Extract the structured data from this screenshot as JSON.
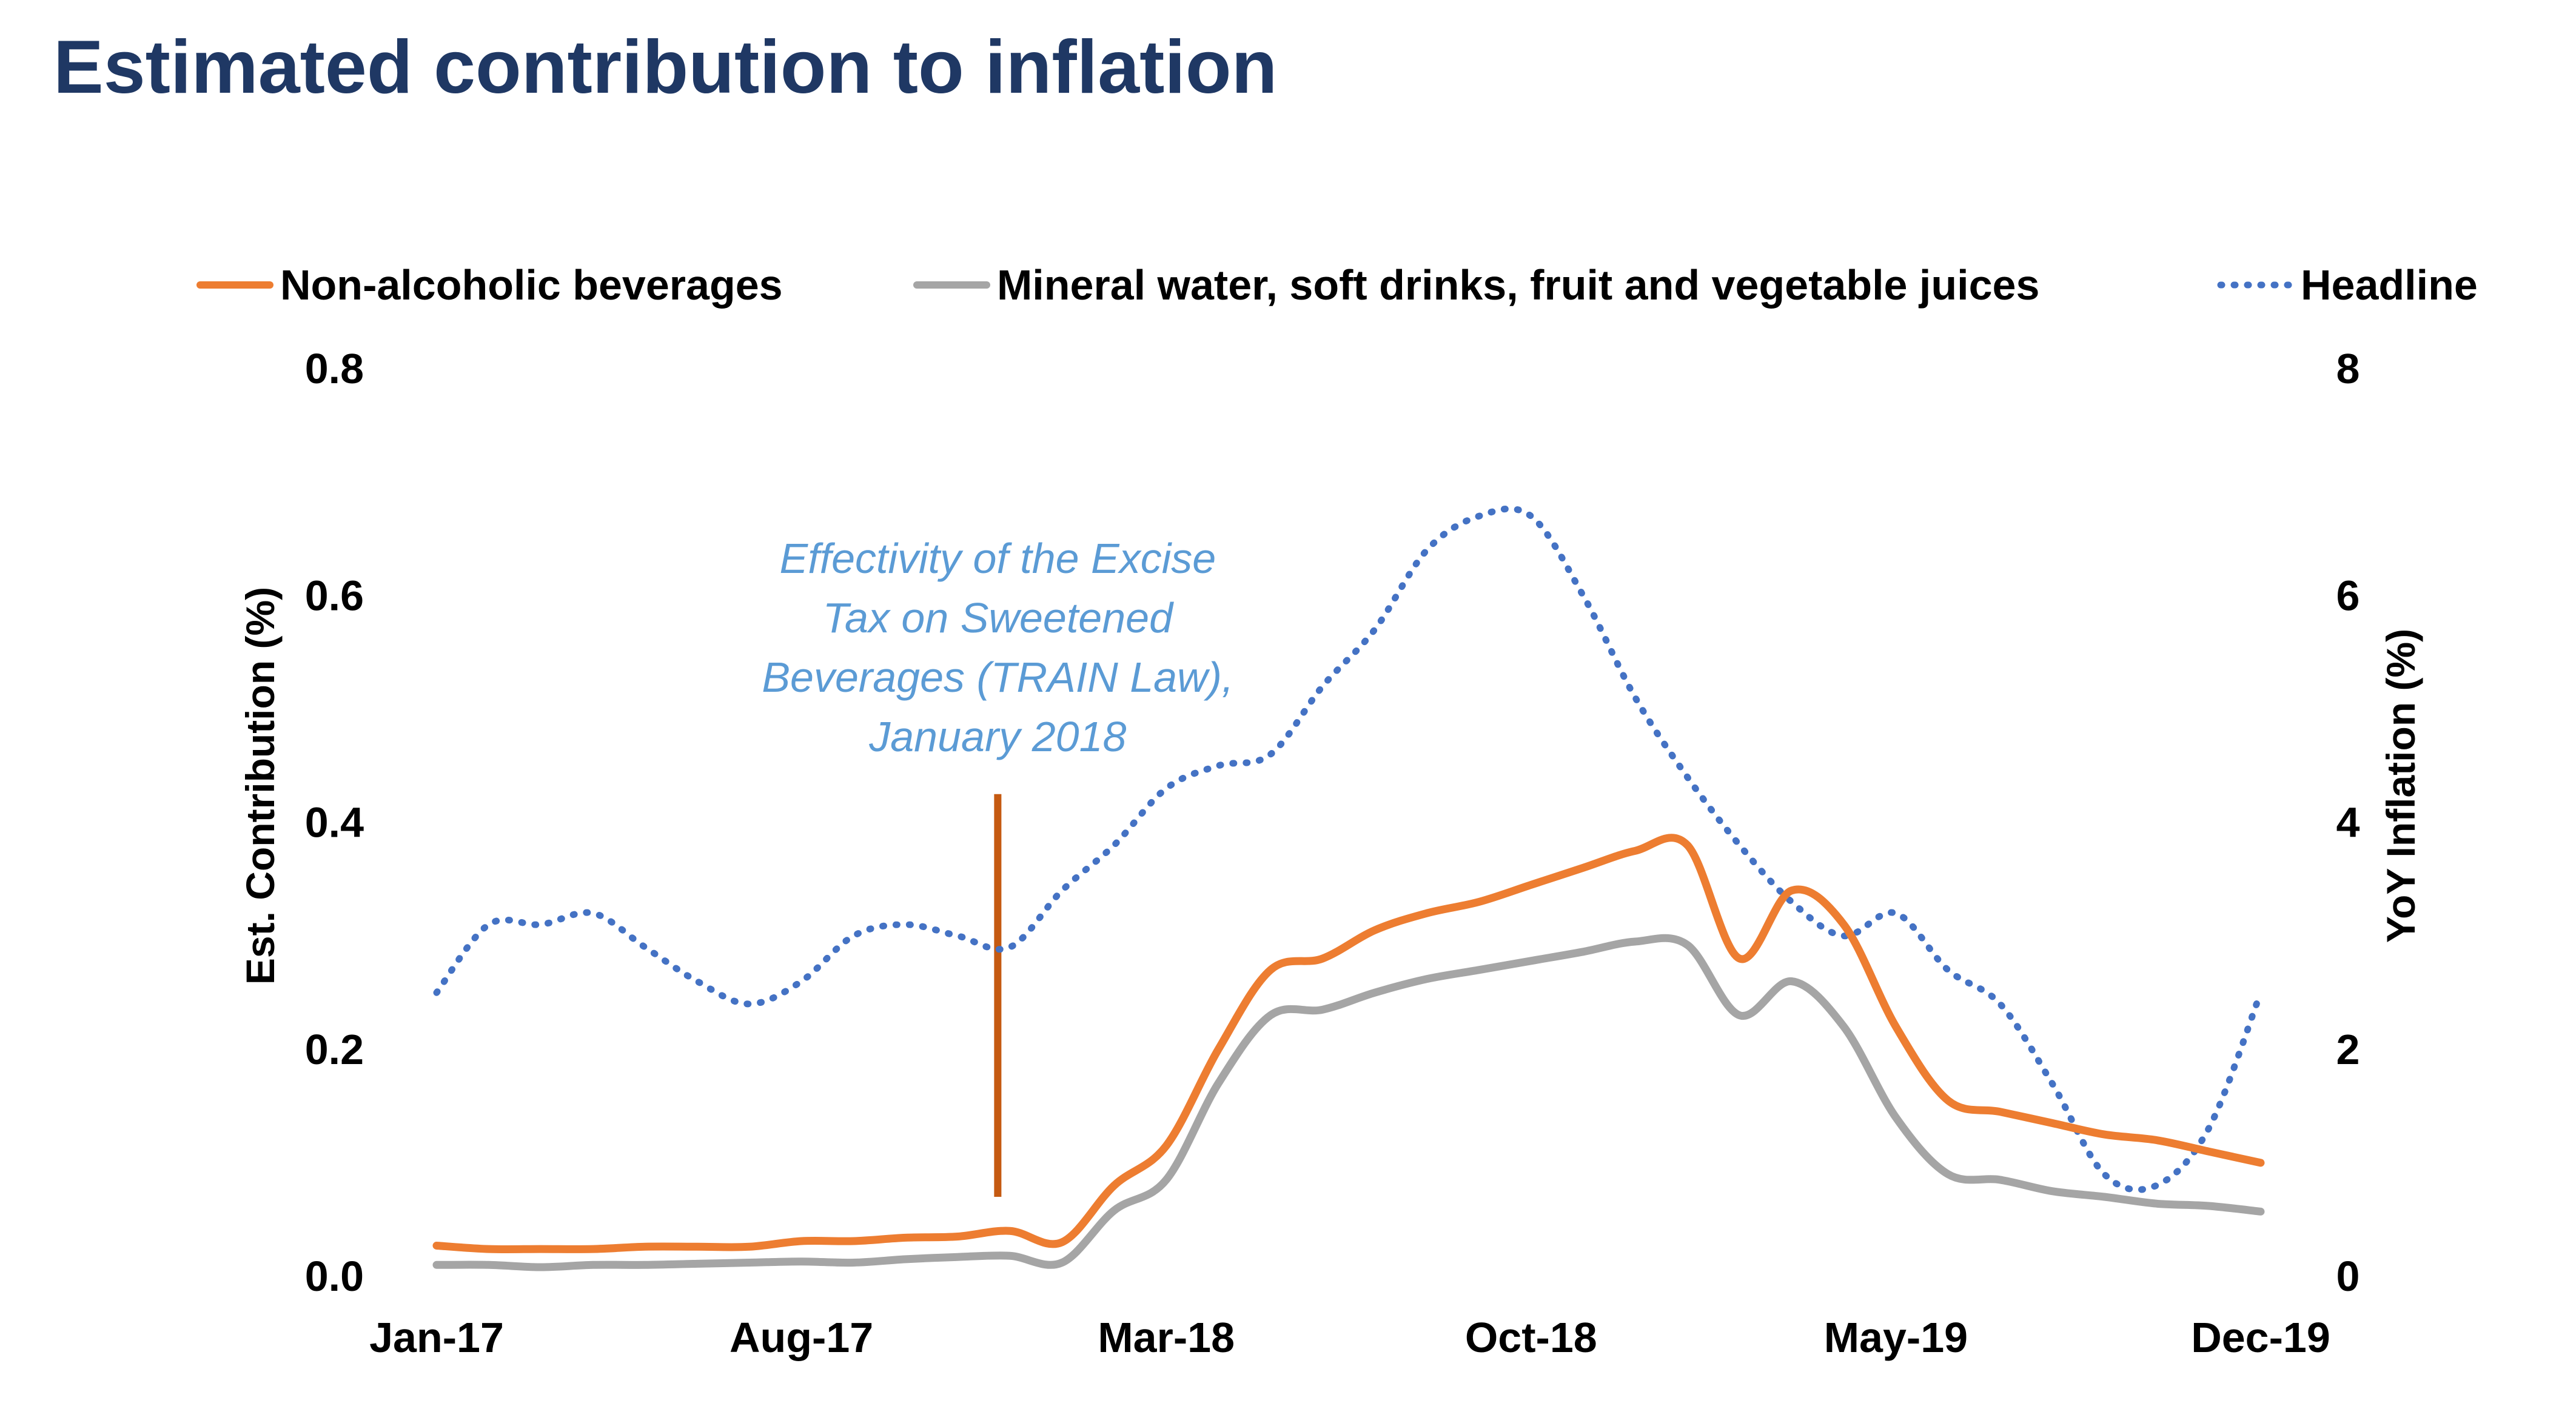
{
  "page": {
    "title": "Estimated contribution to inflation"
  },
  "chart_data": {
    "type": "line",
    "title": "Estimated contribution to inflation",
    "x": [
      "Jan-17",
      "Feb-17",
      "Mar-17",
      "Apr-17",
      "May-17",
      "Jun-17",
      "Jul-17",
      "Aug-17",
      "Sep-17",
      "Oct-17",
      "Nov-17",
      "Dec-17",
      "Jan-18",
      "Feb-18",
      "Mar-18",
      "Apr-18",
      "May-18",
      "Jun-18",
      "Jul-18",
      "Aug-18",
      "Sep-18",
      "Oct-18",
      "Nov-18",
      "Dec-18",
      "Jan-19",
      "Feb-19",
      "Mar-19",
      "Apr-19",
      "May-19",
      "Jun-19",
      "Jul-19",
      "Aug-19",
      "Sep-19",
      "Oct-19",
      "Nov-19",
      "Dec-19"
    ],
    "x_tick_labels": [
      "Jan-17",
      "Aug-17",
      "Mar-18",
      "Oct-18",
      "May-19",
      "Dec-19"
    ],
    "ylabel": "Est. Contribution (%)",
    "ylim": [
      0,
      0.8
    ],
    "y_ticks": [
      "0.0",
      "0.2",
      "0.4",
      "0.6",
      "0.8"
    ],
    "y2label": "YoY Inflation (%)",
    "y2lim": [
      0,
      8
    ],
    "y2_ticks": [
      "0",
      "2",
      "4",
      "6",
      "8"
    ],
    "legend_position": "top",
    "series": [
      {
        "name": "Non-alcoholic beverages",
        "axis": "left",
        "color": "#ed7d31",
        "style": "solid",
        "values": [
          0.027,
          0.024,
          0.024,
          0.024,
          0.026,
          0.026,
          0.026,
          0.031,
          0.031,
          0.034,
          0.035,
          0.04,
          0.03,
          0.08,
          0.115,
          0.2,
          0.27,
          0.28,
          0.305,
          0.32,
          0.33,
          0.345,
          0.36,
          0.375,
          0.38,
          0.28,
          0.34,
          0.31,
          0.22,
          0.155,
          0.145,
          0.135,
          0.125,
          0.12,
          0.11,
          0.1
        ]
      },
      {
        "name": "Mineral water, soft drinks, fruit and vegetable juices",
        "axis": "left",
        "color": "#a5a5a5",
        "style": "solid",
        "values": [
          0.01,
          0.01,
          0.008,
          0.01,
          0.01,
          0.011,
          0.012,
          0.013,
          0.012,
          0.015,
          0.017,
          0.018,
          0.012,
          0.058,
          0.085,
          0.17,
          0.23,
          0.235,
          0.25,
          0.262,
          0.27,
          0.278,
          0.286,
          0.295,
          0.292,
          0.23,
          0.26,
          0.22,
          0.14,
          0.09,
          0.085,
          0.075,
          0.07,
          0.064,
          0.062,
          0.057
        ]
      },
      {
        "name": "Headline",
        "axis": "right",
        "color": "#4472c4",
        "style": "dotted",
        "values": [
          2.5,
          3.1,
          3.1,
          3.2,
          2.9,
          2.6,
          2.4,
          2.6,
          3.0,
          3.1,
          3.0,
          2.9,
          3.4,
          3.8,
          4.3,
          4.5,
          4.6,
          5.2,
          5.7,
          6.4,
          6.7,
          6.7,
          6.0,
          5.1,
          4.4,
          3.8,
          3.3,
          3.0,
          3.2,
          2.7,
          2.4,
          1.7,
          0.9,
          0.8,
          1.3,
          2.5
        ]
      }
    ],
    "annotation": {
      "lines": [
        "Effectivity of the Excise",
        "Tax on Sweetened",
        "Beverages (TRAIN Law),",
        "January 2018"
      ],
      "at_x": "Dec-17",
      "marker_range": [
        0.07,
        0.425
      ],
      "color": "#5b9bd5",
      "marker_color": "#c55a11"
    }
  }
}
